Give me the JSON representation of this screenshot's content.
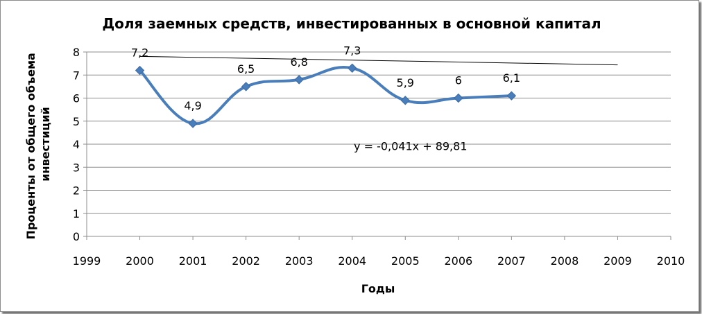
{
  "chart_data": {
    "type": "scatter",
    "title": "Доля заемных средств, инвестированных в основной капитал",
    "xlabel": "Годы",
    "ylabel_lines": [
      "Проценты от общего объема",
      "инвестиций"
    ],
    "xlim": [
      1999,
      2010
    ],
    "ylim": [
      0,
      8
    ],
    "xticks": [
      1999,
      2000,
      2001,
      2002,
      2003,
      2004,
      2005,
      2006,
      2007,
      2008,
      2009,
      2010
    ],
    "yticks": [
      0,
      1,
      2,
      3,
      4,
      5,
      6,
      7,
      8
    ],
    "grid": "horizontal",
    "legend": "none",
    "series": [
      {
        "x": [
          2000,
          2001,
          2002,
          2003,
          2004,
          2005,
          2006,
          2007
        ],
        "y": [
          7.2,
          4.9,
          6.5,
          6.8,
          7.3,
          5.9,
          6,
          6.1
        ],
        "data_labels": [
          "7,2",
          "4,9",
          "6,5",
          "6,8",
          "7,3",
          "5,9",
          "6",
          "6,1"
        ],
        "color": "#4a7ebb",
        "marker": "diamond",
        "smoothed": true
      }
    ],
    "trendline": {
      "type": "linear",
      "slope": -0.041,
      "intercept": 89.81,
      "x_range": [
        2000,
        2009
      ],
      "equation_label": "y = -0,041x + 89,81",
      "color": "#000000"
    }
  }
}
